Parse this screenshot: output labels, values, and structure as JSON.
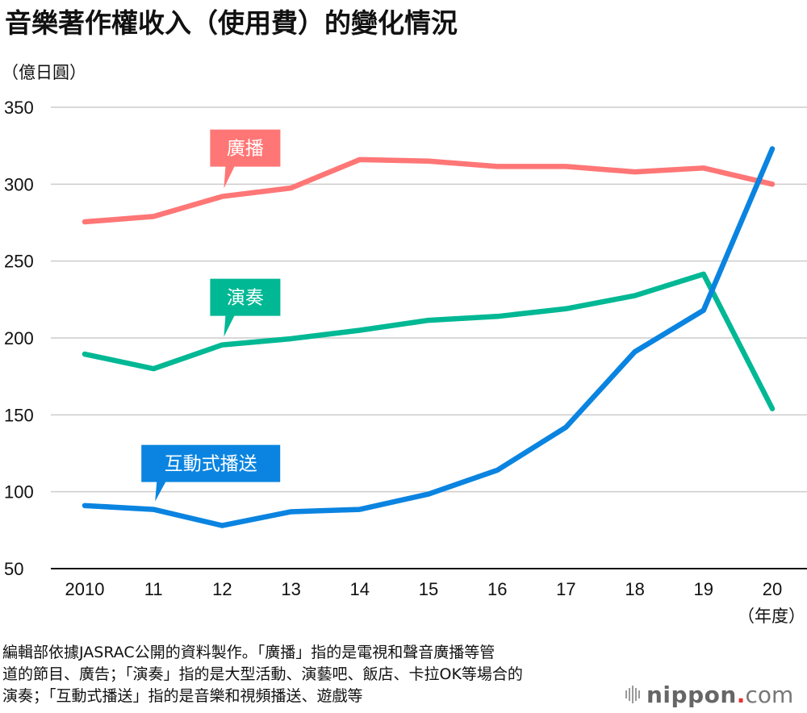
{
  "header": {
    "title": "音樂著作權收入（使用費）的變化情況",
    "unit": "（億日圓）"
  },
  "chart_data": {
    "type": "line",
    "title": "音樂著作權收入（使用費）的變化情況",
    "ylabel": "（億日圓）",
    "xlabel": "（年度）",
    "categories": [
      "2010",
      "11",
      "12",
      "13",
      "14",
      "15",
      "16",
      "17",
      "18",
      "19",
      "20"
    ],
    "ylim": [
      50,
      350
    ],
    "yticks": [
      350,
      300,
      250,
      200,
      150,
      100,
      50
    ],
    "grid": true,
    "legend": "inline-callouts",
    "series": [
      {
        "name": "廣播",
        "color": "#ff7676",
        "label_anchor_index": 2,
        "values": [
          275.5,
          279,
          292,
          297.5,
          316,
          315,
          311.5,
          311.5,
          308,
          310.5,
          300
        ]
      },
      {
        "name": "演奏",
        "color": "#00b894",
        "label_anchor_index": 2,
        "values": [
          189.5,
          180,
          195.5,
          199.5,
          205,
          211.5,
          214,
          219,
          227.5,
          241.5,
          154
        ]
      },
      {
        "name": "互動式播送",
        "color": "#0a84e0",
        "label_anchor_index": 1,
        "values": [
          91,
          88.5,
          78,
          87,
          88.5,
          98.5,
          114,
          142,
          191,
          218,
          323
        ]
      }
    ]
  },
  "footer": {
    "note_lines": [
      "編輯部依據JASRAC公開的資料製作。「廣播」指的是電視和聲音廣播等管",
      "道的節目、廣告；「演奏」指的是大型活動、演藝吧、飯店、卡拉OK等場合的",
      "演奏；「互動式播送」指的是音樂和視頻播送、遊戲等"
    ],
    "logo": {
      "name": "nippon",
      "dot": ".",
      "suffix": "com",
      "accent_color": "#e8302f"
    }
  }
}
